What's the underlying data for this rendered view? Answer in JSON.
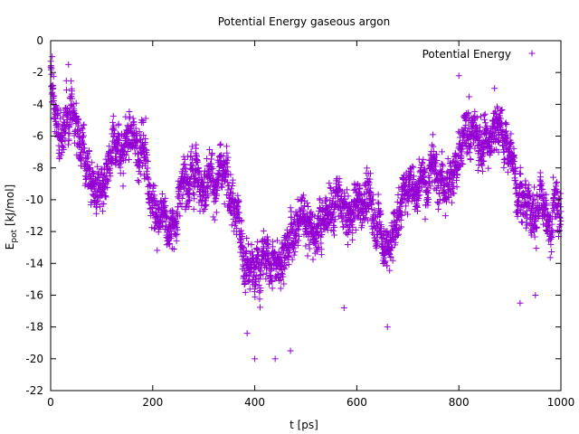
{
  "chart_data": {
    "type": "scatter",
    "title": "Potential Energy gaseous argon",
    "xlabel": "t [ps]",
    "ylabel": {
      "main": "E",
      "sub": "pot",
      "rest": " [kJ/mol]"
    },
    "xlim": [
      0,
      1000
    ],
    "ylim": [
      -22,
      0
    ],
    "xticks": [
      0,
      200,
      400,
      600,
      800,
      1000
    ],
    "yticks": [
      0,
      -2,
      -4,
      -6,
      -8,
      -10,
      -12,
      -14,
      -16,
      -18,
      -20,
      -22
    ],
    "marker": "+",
    "legend_position": "top-right",
    "grid": false,
    "series": [
      {
        "name": "Potential Energy",
        "color": "#9400d3",
        "trend": [
          {
            "x": 0,
            "y": -2.2
          },
          {
            "x": 10,
            "y": -5.0
          },
          {
            "x": 25,
            "y": -5.6
          },
          {
            "x": 40,
            "y": -4.3
          },
          {
            "x": 55,
            "y": -6.4
          },
          {
            "x": 75,
            "y": -8.0
          },
          {
            "x": 90,
            "y": -9.6
          },
          {
            "x": 105,
            "y": -10.0
          },
          {
            "x": 120,
            "y": -7.6
          },
          {
            "x": 140,
            "y": -6.8
          },
          {
            "x": 160,
            "y": -6.2
          },
          {
            "x": 180,
            "y": -6.8
          },
          {
            "x": 195,
            "y": -9.6
          },
          {
            "x": 215,
            "y": -11.2
          },
          {
            "x": 235,
            "y": -11.6
          },
          {
            "x": 255,
            "y": -10.0
          },
          {
            "x": 275,
            "y": -8.6
          },
          {
            "x": 300,
            "y": -8.4
          },
          {
            "x": 320,
            "y": -9.0
          },
          {
            "x": 340,
            "y": -8.6
          },
          {
            "x": 360,
            "y": -10.6
          },
          {
            "x": 380,
            "y": -13.6
          },
          {
            "x": 400,
            "y": -14.4
          },
          {
            "x": 420,
            "y": -13.6
          },
          {
            "x": 440,
            "y": -14.4
          },
          {
            "x": 460,
            "y": -13.0
          },
          {
            "x": 480,
            "y": -11.6
          },
          {
            "x": 500,
            "y": -11.0
          },
          {
            "x": 520,
            "y": -12.2
          },
          {
            "x": 540,
            "y": -11.4
          },
          {
            "x": 560,
            "y": -10.4
          },
          {
            "x": 580,
            "y": -11.2
          },
          {
            "x": 600,
            "y": -10.4
          },
          {
            "x": 620,
            "y": -9.4
          },
          {
            "x": 640,
            "y": -11.6
          },
          {
            "x": 660,
            "y": -13.0
          },
          {
            "x": 680,
            "y": -11.0
          },
          {
            "x": 700,
            "y": -8.6
          },
          {
            "x": 720,
            "y": -9.4
          },
          {
            "x": 740,
            "y": -8.4
          },
          {
            "x": 760,
            "y": -8.0
          },
          {
            "x": 780,
            "y": -9.4
          },
          {
            "x": 800,
            "y": -6.6
          },
          {
            "x": 820,
            "y": -5.6
          },
          {
            "x": 840,
            "y": -6.2
          },
          {
            "x": 860,
            "y": -5.8
          },
          {
            "x": 880,
            "y": -5.2
          },
          {
            "x": 900,
            "y": -7.4
          },
          {
            "x": 920,
            "y": -9.0
          },
          {
            "x": 940,
            "y": -11.2
          },
          {
            "x": 960,
            "y": -9.8
          },
          {
            "x": 980,
            "y": -10.4
          },
          {
            "x": 1000,
            "y": -10.6
          }
        ],
        "spread": 1.6,
        "n_points": 3200,
        "outliers": [
          {
            "x": 400,
            "y": -20.0
          },
          {
            "x": 440,
            "y": -20.0
          },
          {
            "x": 470,
            "y": -19.5
          },
          {
            "x": 660,
            "y": -18.0
          },
          {
            "x": 385,
            "y": -18.4
          },
          {
            "x": 3,
            "y": -1.0
          },
          {
            "x": 35,
            "y": -1.5
          },
          {
            "x": 800,
            "y": -2.2
          },
          {
            "x": 870,
            "y": -3.0
          },
          {
            "x": 950,
            "y": -16.0
          },
          {
            "x": 920,
            "y": -16.5
          },
          {
            "x": 575,
            "y": -16.8
          }
        ]
      }
    ]
  }
}
